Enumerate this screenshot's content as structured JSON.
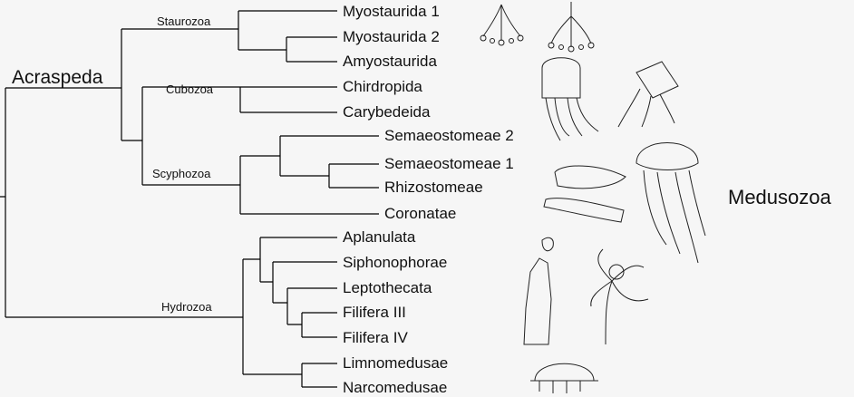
{
  "root_label": "Acraspeda",
  "group_label": "Medusozoa",
  "clades": {
    "staurozoa": "Staurozoa",
    "cubozoa": "Cubozoa",
    "scyphozoa": "Scyphozoa",
    "hydrozoa": "Hydrozoa"
  },
  "taxa": [
    "Myostaurida 1",
    "Myostaurida 2",
    "Amyostaurida",
    "Chirdropida",
    "Carybedeida",
    "Semaeostomeae 2",
    "Semaeostomeae 1",
    "Rhizostomeae",
    "Coronatae",
    "Aplanulata",
    "Siphonophorae",
    "Leptothecata",
    "Filifera III",
    "Filifera IV",
    "Limnomedusae",
    "Narcomedusae"
  ],
  "line_color": "#000000",
  "background_color": "#f6f6f6"
}
